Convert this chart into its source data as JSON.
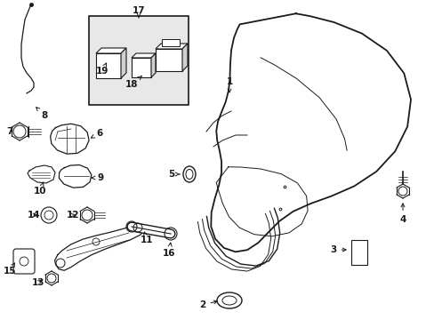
{
  "bg_color": "#ffffff",
  "line_color": "#1a1a1a",
  "fig_w": 4.89,
  "fig_h": 3.6,
  "dpi": 100
}
